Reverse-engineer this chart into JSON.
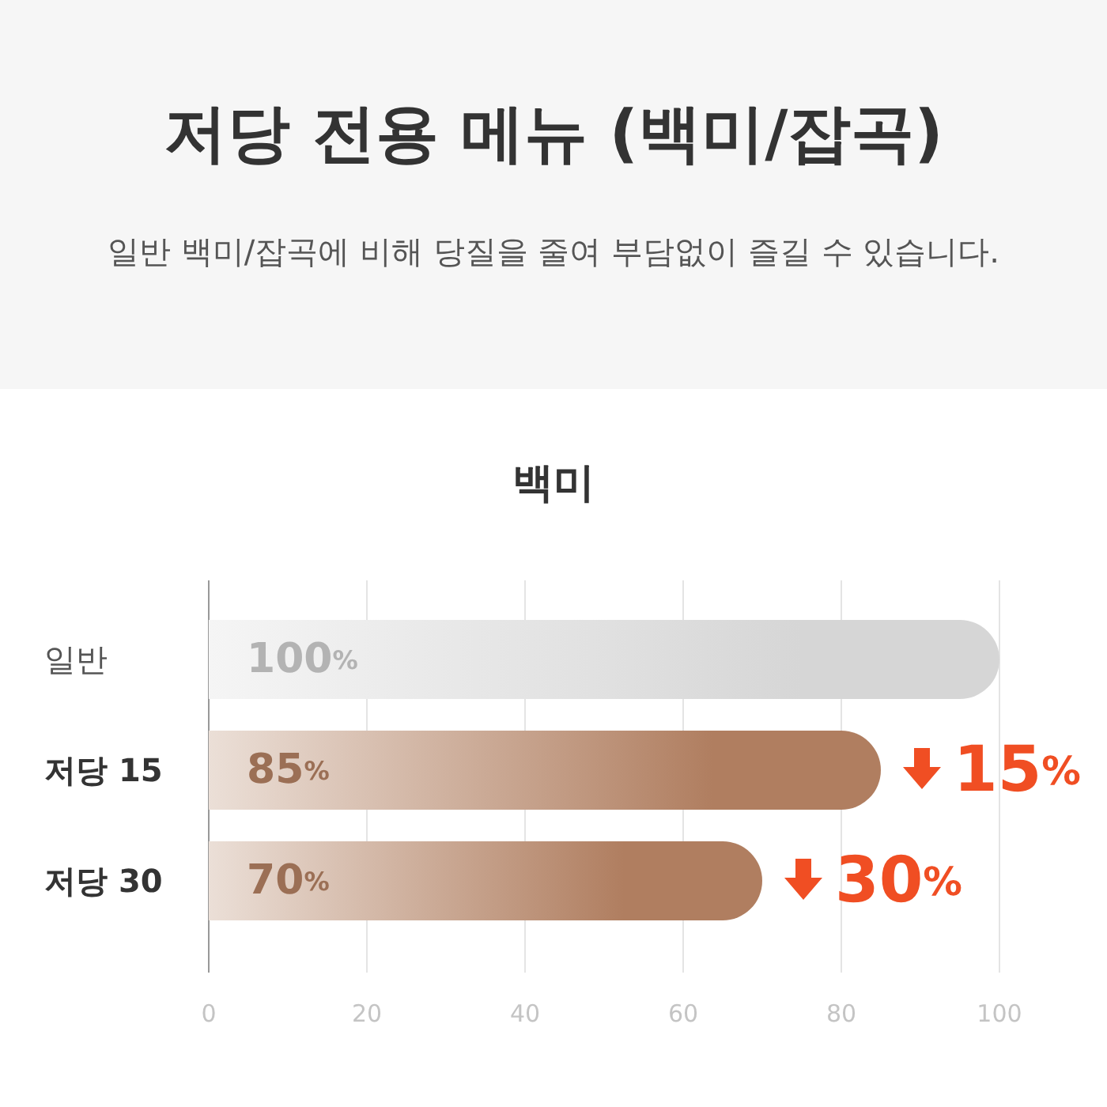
{
  "chart_data": {
    "type": "bar",
    "orientation": "horizontal",
    "title": "저당 전용 메뉴 (백미/잡곡)",
    "subtitle": "일반 백미/잡곡에 비해 당질을 줄여 부담없이 즐길 수 있습니다.",
    "xlabel": "백미",
    "categories": [
      "일반",
      "저당 15",
      "저당 30"
    ],
    "values": [
      100,
      85,
      70
    ],
    "colors": [
      "#d6d6d6",
      "#b07e60",
      "#b07e60"
    ],
    "value_labels": [
      "100%",
      "85%",
      "70%"
    ],
    "xlim": [
      0,
      100
    ],
    "xticks": [
      0,
      20,
      40,
      60,
      80,
      100
    ],
    "grid": "x",
    "annotations": [
      {
        "text": "15%",
        "x": 85,
        "y": "저당 15"
      },
      {
        "text": "30%",
        "x": 70,
        "y": "저당 30"
      }
    ]
  }
}
